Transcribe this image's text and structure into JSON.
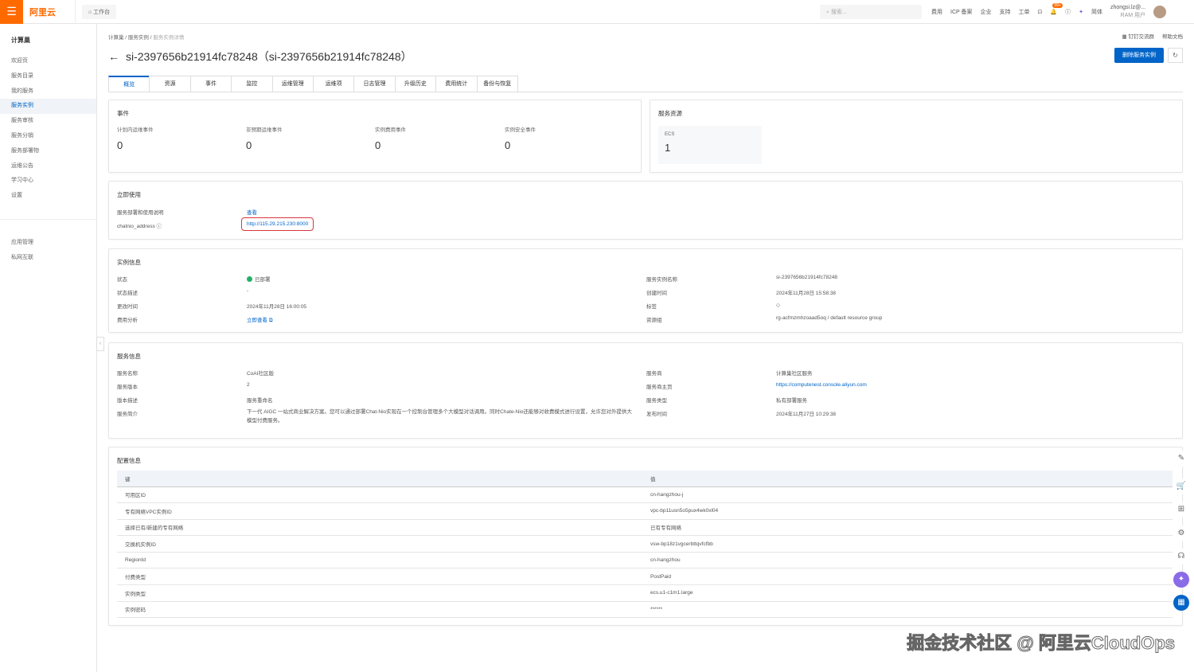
{
  "topbar": {
    "logo": "阿里云",
    "workbench": "工作台",
    "search_placeholder": "搜索...",
    "nav": [
      "费用",
      "ICP 备案",
      "企业",
      "支持",
      "工单"
    ],
    "badge": "99+",
    "lang": "简体",
    "user": "zhongsi.lz@...",
    "user_role": "RAM 用户"
  },
  "sidebar": {
    "title": "计算巢",
    "items": [
      "欢迎页",
      "服务目录",
      "我的服务",
      "服务实例",
      "服务审核",
      "服务分销",
      "服务部署物",
      "运维公告",
      "学习中心",
      "设置"
    ],
    "items2": [
      "应用管理",
      "私网互联"
    ],
    "active": "服务实例"
  },
  "breadcrumb": [
    "计算巢",
    "服务实例",
    "服务实例详情"
  ],
  "page_title": "si-2397656b21914fc78248（si-2397656b21914fc78248）",
  "header_links": {
    "dingtalk": "钉钉交流群",
    "help": "帮助文档"
  },
  "delete_button": "删除服务实例",
  "tabs": [
    "概览",
    "资源",
    "事件",
    "监控",
    "运维管理",
    "运维项",
    "日志管理",
    "升级历史",
    "费用统计",
    "备份与恢复"
  ],
  "events": {
    "title": "事件",
    "items": [
      {
        "label": "计划内运维事件",
        "value": "0"
      },
      {
        "label": "非预期运维事件",
        "value": "0"
      },
      {
        "label": "实例费用事件",
        "value": "0"
      },
      {
        "label": "实例安全事件",
        "value": "0"
      }
    ]
  },
  "resources": {
    "title": "服务资源",
    "type": "ECS",
    "count": "1"
  },
  "quick_use": {
    "title": "立即使用",
    "doc_label": "服务部署和使用说明",
    "doc_link": "查看",
    "addr_label": "chatnio_address",
    "addr_value": "http://115.29.215.230:8000"
  },
  "instance": {
    "title": "实例信息",
    "status_label": "状态",
    "status": "已部署",
    "status_desc_label": "状态描述",
    "status_desc": "-",
    "modified_label": "更改时间",
    "modified": "2024年11月28日 16:00:05",
    "cost_label": "费用分析",
    "cost_link": "立即查看",
    "name_label": "服务实例名称",
    "name": "si-2397656b21914fc78248",
    "created_label": "创建时间",
    "created": "2024年11月28日 15:58:38",
    "tags_label": "标签",
    "rg_label": "资源组",
    "rg": "rg-acfmzmhzoaad5oq / default resource group"
  },
  "service": {
    "title": "服务信息",
    "name_label": "服务名称",
    "name": "CoAI社区版",
    "version_label": "服务版本",
    "version": "2",
    "vdesc_label": "版本描述",
    "vdesc": "服务重命名",
    "intro_label": "服务简介",
    "intro": "下一代 AIGC 一站式商业解决方案。您可以通过部署Chat-Nio实现在一个控制台管理多个大模型对话调用。同时Chate-Nio还能够对收费模式进行设置，允许您对外提供大模型付费服务。",
    "provider_label": "服务商",
    "provider": "计算巢社区服务",
    "home_label": "服务商主页",
    "home": "https://computenest.console.aliyun.com",
    "type_label": "服务类型",
    "type": "私有部署服务",
    "pub_label": "发布时间",
    "pub": "2024年11月27日 10:29:38"
  },
  "config": {
    "title": "配置信息",
    "col_key": "键",
    "col_value": "值",
    "rows": [
      [
        "可用区ID",
        "cn-hangzhou-j"
      ],
      [
        "专有网络VPC实例ID",
        "vpc-bp11usn5o5pux4wk0xl04"
      ],
      [
        "选择已有/新建的专有网络",
        "已有专有网络"
      ],
      [
        "交换机实例ID",
        "vsw-bp18z1vgcerbttqvfcfbb"
      ],
      [
        "RegionId",
        "cn-hangzhou"
      ],
      [
        "付费类型",
        "PostPaid"
      ],
      [
        "实例类型",
        "ecs.u1-c1m1.large"
      ],
      [
        "实例密码",
        "******"
      ]
    ]
  },
  "watermark": "掘金技术社区 @ 阿里云CloudOps",
  "colors": {
    "brand": "#ff6a00",
    "primary": "#0064c8",
    "success": "#23b066",
    "highlight": "#d9363e"
  }
}
